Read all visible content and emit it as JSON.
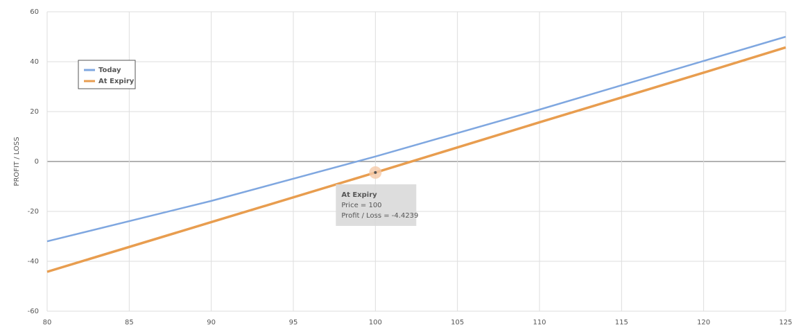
{
  "chart_data": {
    "type": "line",
    "y_label": "PROFIT / LOSS",
    "x": [
      80,
      90,
      100,
      110,
      120,
      125
    ],
    "series": [
      {
        "name": "Today",
        "color": "#7fa7e0",
        "values": [
          -32,
          -15.8,
          2,
          20.8,
          40.3,
          50
        ]
      },
      {
        "name": "At Expiry",
        "color": "#e89d4f",
        "values": [
          -44.2,
          -24.3,
          -4.4239,
          15.7,
          35.6,
          45.7
        ]
      }
    ],
    "xlim": [
      80,
      125
    ],
    "xticks": [
      80,
      85,
      90,
      95,
      100,
      105,
      110,
      115,
      120,
      125
    ],
    "ylim": [
      -60,
      60
    ],
    "yticks": [
      -60,
      -40,
      -20,
      0,
      20,
      40,
      60
    ],
    "grid": true,
    "legend": "upper left",
    "tooltip": {
      "title": "At Expiry",
      "lines": [
        "Price = 100",
        "Profit / Loss = -4.4239"
      ]
    }
  }
}
